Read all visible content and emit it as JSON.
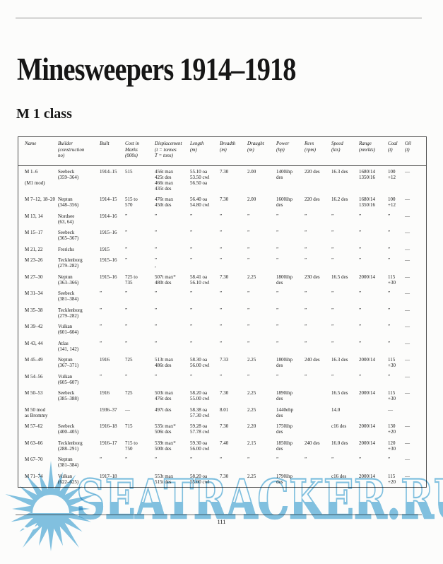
{
  "page": {
    "title": "Minesweepers 1914–1918",
    "section_heading": "M 1 class",
    "page_number": "111"
  },
  "watermark": {
    "text": "SEATRACKER.RU",
    "color": "#7cc0e2",
    "logo": "sunburst-logo"
  },
  "table": {
    "headers": [
      "Name",
      "Builder\n(construction\nno)",
      "Built",
      "Cost in\nMarks\n(000s)",
      "Displacement\n(t = tonnes\nT = tons)",
      "Length\n(m)",
      "Breadth\n(m)",
      "Draught\n(m)",
      "Power\n(hp)",
      "Revs\n(rpm)",
      "Speed\n(kts)",
      "Range\n(nm/kts)",
      "Coal\n(t)",
      "Oil\n(t)"
    ],
    "rows": [
      [
        "M 1–6\n\n(M1 mod)",
        "Seebeck\n(359–364)",
        "1914–15",
        "515",
        "456t max\n425t des\n466t max\n435t des",
        "55.10 oa\n53.50 cwl\n56.50 oa",
        "7.30",
        "2.00",
        "1400ihp\ndes",
        "220 des",
        "16.3 des",
        "1680/14\n1350/16",
        "100\n+12",
        "—"
      ],
      [
        "M 7–12, 18–20",
        "Neptun\n(348–356)",
        "1914–15",
        "515 to\n570",
        "476t max\n450t des",
        "56.40 oa\n54.80 cwl",
        "7.30",
        "2.00",
        "1600ihp\ndes",
        "220 des",
        "16.2 des",
        "1680/14\n1350/16",
        "100\n+12",
        "—"
      ],
      [
        "M 13, 14",
        "Nordsee\n(63, 64)",
        "1914–16",
        "”",
        "”",
        "”",
        "”",
        "”",
        "”",
        "”",
        "”",
        "”",
        "”",
        "—"
      ],
      [
        "M 15–17",
        "Seebeck\n(365–367)",
        "1915–16",
        "”",
        "”",
        "”",
        "”",
        "”",
        "”",
        "”",
        "”",
        "”",
        "”",
        "—"
      ],
      [
        "M 21, 22",
        "Frerichs",
        "1915",
        "”",
        "”",
        "”",
        "”",
        "”",
        "”",
        "”",
        "”",
        "”",
        "”",
        "—"
      ],
      [
        "M 23–26",
        "Tecklenborg\n(279–282)",
        "1915–16",
        "”",
        "”\n,",
        "”",
        "”",
        "”",
        "”",
        "”",
        "”",
        "”",
        "”",
        "—"
      ],
      [
        "M 27–30",
        "Neptun\n(363–366)",
        "1915–16",
        "725 to\n735",
        "507t max*\n480t des",
        "58.41 oa\n56.10 cwl",
        "7.30",
        "2.25",
        "1800ihp\ndes",
        "230 des",
        "16.5 des",
        "2000/14",
        "115\n+30",
        "—"
      ],
      [
        "M 31–34",
        "Seebeck\n(381–384)",
        "”",
        "”",
        "”",
        "”",
        "”",
        "”",
        "”",
        "”",
        "”",
        "”",
        "”",
        "—"
      ],
      [
        "M 35–38",
        "Tecklenborg\n(279–282)",
        "”",
        "”",
        "”",
        "”",
        "”",
        "”",
        "”",
        "”",
        "”",
        "”",
        "”",
        "—"
      ],
      [
        "M 39–42",
        "Vulkan\n(601–604)",
        "”",
        "”",
        "”",
        "”",
        "”",
        "”",
        "”",
        "”",
        "”",
        "”",
        "”",
        "—"
      ],
      [
        "M 43, 44",
        "Atlas\n(141, 142)",
        "”",
        "”",
        "”",
        "”",
        "”",
        "”",
        "”",
        "”",
        "”",
        "”",
        "”",
        "—"
      ],
      [
        "M 45–49",
        "Neptun\n(367–371)",
        "1916",
        "725",
        "513t max\n486t des",
        "58.30 oa\n56.00 cwl",
        "7.33",
        "2.25",
        "1800ihp\ndes",
        "240 des",
        "16.3 des",
        "2000/14",
        "115\n+30",
        "—"
      ],
      [
        "M 54–56",
        "Vulkan\n(605–607)",
        "”",
        "”",
        "”",
        "”",
        "”",
        "”",
        "”",
        "”",
        "”",
        "”",
        "”",
        "—"
      ],
      [
        "M 50–53",
        "Seebeck\n(385–388)",
        "1916",
        "725",
        "503t max\n476t des",
        "58.20 oa\n55.00 cwl",
        "7.30",
        "2.25",
        "1890ihp\ndes",
        "",
        "16.5 des",
        "2000/14",
        "115\n+30",
        "—"
      ],
      [
        "M 50 mod\nas Brommy",
        "",
        "1936–37",
        "—",
        "497t des",
        "58.38 oa\n57.30 cwl",
        "8.01",
        "2.25",
        "1440ehp\ndes",
        "",
        "14.0",
        "",
        "—",
        ""
      ],
      [
        "M 57–62",
        "Seebeck\n(400–405)",
        "1916–18",
        "715",
        "535t max*\n506t des",
        "59.28 oa\n57.78 cwl",
        "7.30",
        "2.20",
        "1750ihp\ndes",
        "",
        "c16 des",
        "2000/14",
        "130\n+20",
        "—"
      ],
      [
        "M 63–66",
        "Tecklenborg\n(288–291)",
        "1916–17",
        "715 to\n750",
        "539t max*\n500t des",
        "59.30 oa\n56.00 cwl",
        "7.40",
        "2.15",
        "1850ihp\ndes",
        "240 des",
        "16.0 des",
        "2000/14",
        "120\n+30",
        "—"
      ],
      [
        "M 67–70",
        "Neptun\n(381–384)",
        "”",
        "”",
        "”",
        "”",
        "”",
        "”",
        "”",
        "”",
        "”",
        "”",
        "”",
        "—"
      ],
      [
        "M 71–74",
        "Vulkan\n(622–625)",
        "1917–18",
        "",
        "553t max\n515t des",
        "58.20 oa\n55.00 cwl",
        "7.30",
        "2.25",
        "1790ihp\ndes",
        "",
        "c16 des",
        "2000/14",
        "115\n+20",
        "—"
      ]
    ]
  }
}
